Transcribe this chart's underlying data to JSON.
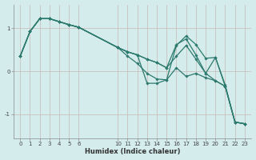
{
  "background_color": "#d4ecec",
  "grid_color": "#c8b8b8",
  "line_color": "#2d7a6e",
  "series": [
    {
      "x": [
        0,
        1,
        2,
        3,
        4,
        5,
        6,
        10,
        11,
        12,
        13,
        14,
        15,
        16,
        17,
        18,
        19,
        20,
        21,
        22,
        23
      ],
      "y": [
        0.35,
        0.92,
        1.22,
        1.22,
        1.15,
        1.08,
        1.02,
        0.55,
        0.45,
        0.38,
        0.28,
        0.2,
        0.08,
        0.35,
        0.6,
        0.28,
        -0.05,
        -0.22,
        -0.35,
        -1.18,
        -1.22
      ]
    },
    {
      "x": [
        0,
        1,
        2,
        3,
        4,
        5,
        6,
        10,
        11,
        12,
        13,
        14,
        15,
        16,
        17,
        18,
        19,
        20,
        21,
        22,
        23
      ],
      "y": [
        0.35,
        0.92,
        1.22,
        1.22,
        1.15,
        1.08,
        1.02,
        0.55,
        0.35,
        0.18,
        -0.05,
        -0.18,
        -0.2,
        0.6,
        0.82,
        0.62,
        0.3,
        0.32,
        -0.32,
        -1.18,
        -1.22
      ]
    },
    {
      "x": [
        0,
        1,
        2,
        3,
        4,
        5,
        6,
        10,
        11,
        12,
        13,
        14,
        15,
        16,
        17,
        18,
        19,
        20,
        21,
        22,
        23
      ],
      "y": [
        0.35,
        0.92,
        1.22,
        1.22,
        1.15,
        1.08,
        1.02,
        0.55,
        0.45,
        0.38,
        0.28,
        0.2,
        0.08,
        0.62,
        0.75,
        0.38,
        -0.05,
        0.32,
        -0.35,
        -1.18,
        -1.22
      ]
    },
    {
      "x": [
        0,
        1,
        2,
        3,
        4,
        5,
        6,
        10,
        11,
        12,
        13,
        14,
        15,
        16,
        17,
        18,
        19,
        20,
        21,
        22,
        23
      ],
      "y": [
        0.35,
        0.92,
        1.22,
        1.22,
        1.15,
        1.08,
        1.02,
        0.55,
        0.45,
        0.38,
        -0.28,
        -0.28,
        -0.2,
        0.08,
        -0.12,
        -0.05,
        -0.15,
        -0.22,
        -0.35,
        -1.18,
        -1.22
      ]
    }
  ],
  "xlabel": "Humidex (Indice chaleur)",
  "xlim": [
    -0.7,
    23.7
  ],
  "ylim": [
    -1.55,
    1.55
  ],
  "xticks": [
    0,
    1,
    2,
    3,
    4,
    5,
    6,
    10,
    11,
    12,
    13,
    14,
    15,
    16,
    17,
    18,
    19,
    20,
    21,
    22,
    23
  ],
  "yticks": [
    -1,
    0,
    1
  ],
  "grid_xticks": [
    0,
    1,
    2,
    3,
    4,
    5,
    6,
    10,
    11,
    12,
    13,
    14,
    15,
    16,
    17,
    18,
    19,
    20,
    21,
    22,
    23
  ],
  "axis_fontsize": 6.0,
  "tick_fontsize": 5.0
}
